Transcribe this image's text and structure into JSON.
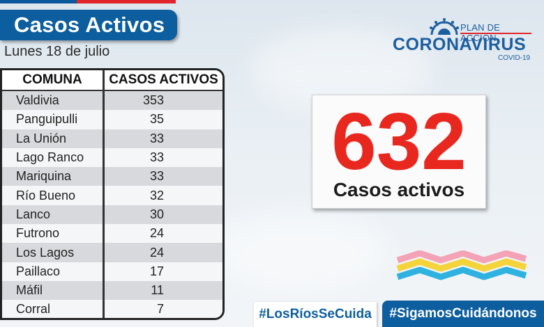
{
  "header": {
    "title": "Casos Activos",
    "date": "Lunes 18 de julio"
  },
  "table": {
    "headers": [
      "COMUNA",
      "CASOS ACTIVOS"
    ],
    "rows": [
      {
        "comuna": "Valdivia",
        "casos": "353"
      },
      {
        "comuna": "Panguipulli",
        "casos": "35"
      },
      {
        "comuna": "La Unión",
        "casos": "33"
      },
      {
        "comuna": "Lago Ranco",
        "casos": "33"
      },
      {
        "comuna": "Mariquina",
        "casos": "33"
      },
      {
        "comuna": "Río Bueno",
        "casos": "32"
      },
      {
        "comuna": "Lanco",
        "casos": "30"
      },
      {
        "comuna": "Futrono",
        "casos": "24"
      },
      {
        "comuna": "Los Lagos",
        "casos": "24"
      },
      {
        "comuna": "Paillaco",
        "casos": "17"
      },
      {
        "comuna": "Máfil",
        "casos": "11"
      },
      {
        "comuna": "Corral",
        "casos": "7"
      }
    ]
  },
  "logo": {
    "plan": "PLAN DE ACCIÓN",
    "name": "CORONAVIRUS",
    "sub": "COVID-19",
    "icon": "virus-icon"
  },
  "total": {
    "value": "632",
    "label": "Casos activos"
  },
  "footer": {
    "hashtag1": "#LosRíosSeCuida",
    "hashtag2": "#SigamosCuidándonos"
  },
  "colors": {
    "brand_blue": "#0d5e9e",
    "accent_red": "#e8271f",
    "wave_pink": "#f3a3b5",
    "wave_yellow": "#f5d33a",
    "wave_cyan": "#2fb2df"
  }
}
